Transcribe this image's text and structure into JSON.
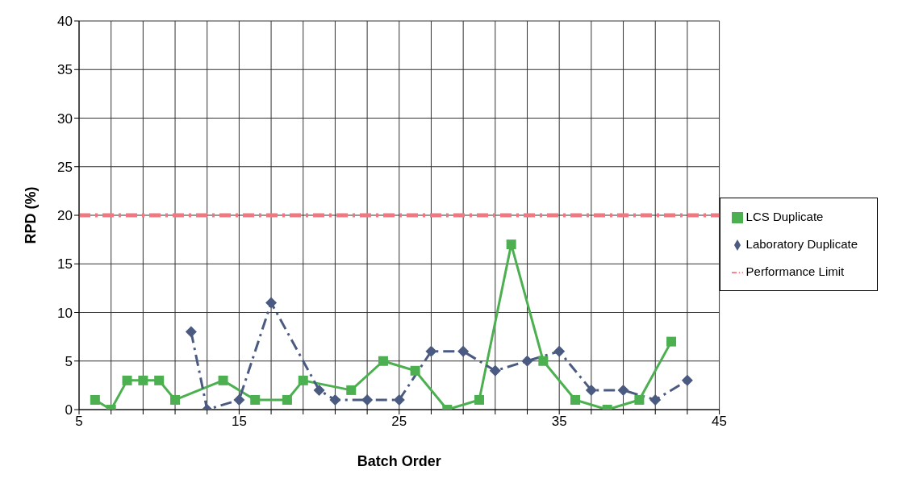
{
  "chart_data": {
    "type": "line",
    "xlabel": "Batch Order",
    "ylabel": "RPD (%)",
    "xlim": [
      5,
      45
    ],
    "xticks": [
      5,
      {
        "value": 7,
        "label": null
      },
      {
        "value": 9,
        "label": null
      },
      {
        "value": 11,
        "label": null
      },
      {
        "value": 13,
        "label": null
      },
      15,
      {
        "value": 17,
        "label": null
      },
      {
        "value": 19,
        "label": null
      },
      {
        "value": 21,
        "label": null
      },
      {
        "value": 23,
        "label": null
      },
      25,
      {
        "value": 27,
        "label": null
      },
      {
        "value": 29,
        "label": null
      },
      {
        "value": 31,
        "label": null
      },
      {
        "value": 33,
        "label": null
      },
      35,
      {
        "value": 37,
        "label": null
      },
      {
        "value": 39,
        "label": null
      },
      {
        "value": 41,
        "label": null
      },
      {
        "value": 43,
        "label": null
      },
      45
    ],
    "ylim": [
      0,
      40
    ],
    "yticks": [
      0,
      5,
      10,
      15,
      20,
      25,
      30,
      35,
      40
    ],
    "grid": true,
    "legend": "right",
    "series": [
      {
        "name": "LCS Duplicate",
        "color": "#4cb050",
        "marker": "square",
        "line_style": "solid",
        "x": [
          6,
          7,
          8,
          9,
          10,
          11,
          14,
          16,
          18,
          19,
          22,
          24,
          26,
          28,
          30,
          32,
          34,
          36,
          38,
          40,
          42
        ],
        "values": [
          1,
          0,
          3,
          3,
          3,
          1,
          3,
          1,
          1,
          3,
          2,
          5,
          4,
          0,
          1,
          17,
          5,
          1,
          0,
          1,
          7
        ]
      },
      {
        "name": "Laboratory Duplicate",
        "color": "#4a5a80",
        "marker": "diamond",
        "line_style": "dashed",
        "x": [
          12,
          13,
          15,
          17,
          20,
          21,
          23,
          25,
          27,
          29,
          31,
          33,
          35,
          37,
          39,
          41,
          43
        ],
        "values": [
          8,
          0,
          1,
          11,
          2,
          1,
          1,
          1,
          6,
          6,
          4,
          5,
          6,
          2,
          2,
          1,
          3
        ]
      },
      {
        "name": "Performance Limit",
        "color": "#f07880",
        "marker": "none",
        "line_style": "dashed",
        "x": [
          5,
          45
        ],
        "values": [
          20,
          20
        ]
      }
    ]
  }
}
